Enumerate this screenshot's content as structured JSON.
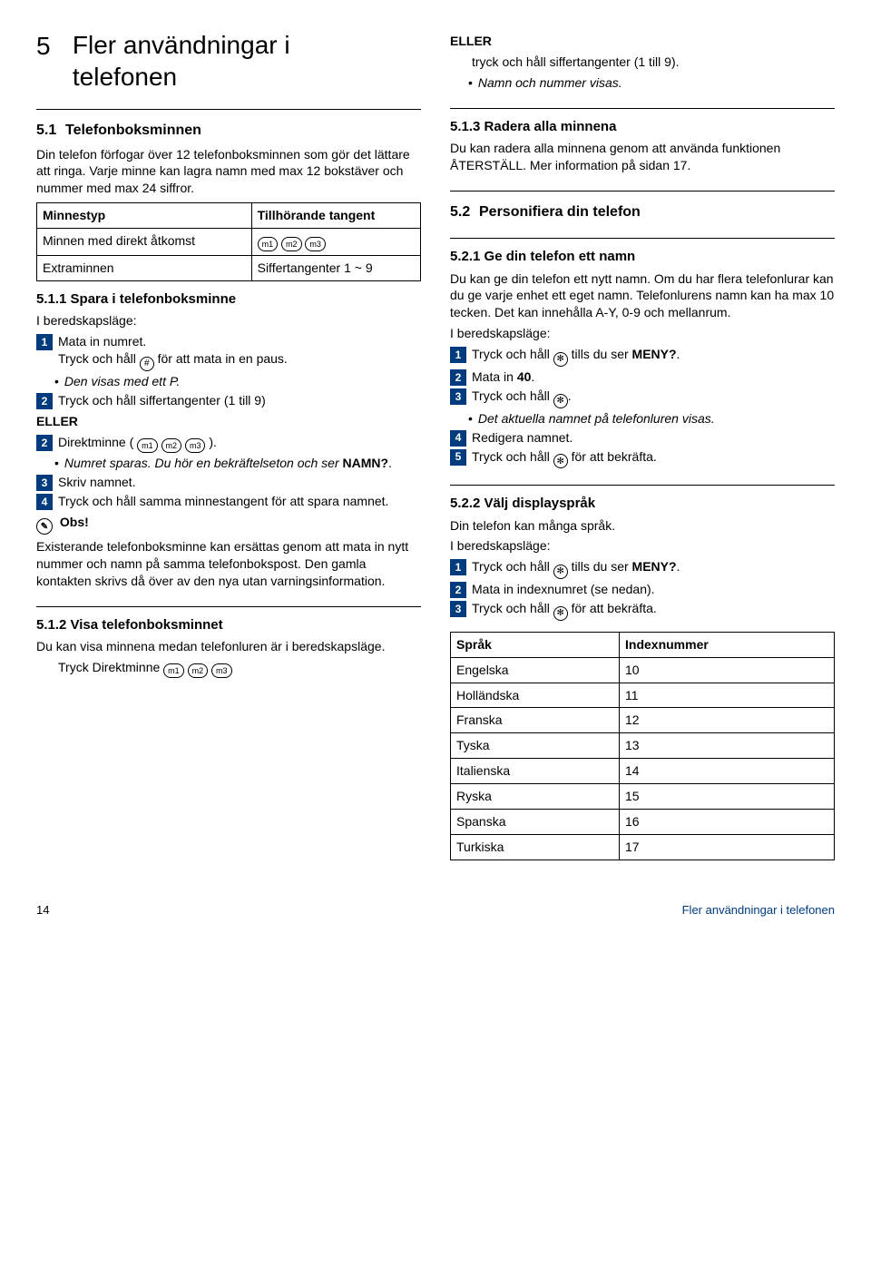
{
  "chapter": {
    "num": "5",
    "title": "Fler användningar i telefonen"
  },
  "sec51": {
    "num": "5.1",
    "title": "Telefonboksminnen",
    "intro": "Din telefon förfogar över 12 telefonboksminnen som gör det lättare att ringa. Varje minne kan lagra namn med max 12 bokstäver och nummer med max 24 siffror.",
    "table": {
      "h1": "Minnestyp",
      "h2": "Tillhörande tangent",
      "r1c1": "Minnen med direkt åtkomst",
      "r2c1": "Extraminnen",
      "r2c2": "Siffertangenter 1 ~ 9"
    }
  },
  "sec511": {
    "title": "5.1.1 Spara i telefonboksminne",
    "lead": "I beredskapsläge:",
    "s1": "Mata in numret.",
    "s1b": "Tryck och håll ",
    "s1b2": " för att mata in en paus.",
    "s1bullet": "Den visas med ett P.",
    "s2a": "Tryck och håll siffertangenter (1 till 9)",
    "eller": "ELLER",
    "s2b_pre": "Direktminne ( ",
    "s2b_post": " ).",
    "s2bullet_a": "Numret sparas. Du hör en bekräftelseton och ser ",
    "s2bullet_b": "NAMN?",
    "s2bullet_c": ".",
    "s3": "Skriv namnet.",
    "s4": "Tryck och håll samma minnestangent för att spara namnet.",
    "obs_label": "Obs!",
    "obs": "Existerande telefonboksminne kan ersättas genom att mata in nytt nummer och namn på samma telefonbokspost. Den gamla kontakten skrivs då över av den nya utan varningsinformation."
  },
  "sec512": {
    "title": "5.1.2 Visa telefonboksminnet",
    "p1": "Du kan visa minnena medan telefonluren är i beredskapsläge.",
    "p2": "Tryck Direktminne "
  },
  "right_top": {
    "eller": "ELLER",
    "line1": "tryck och håll siffertangenter (1 till 9).",
    "bullet": "Namn och nummer visas."
  },
  "sec513": {
    "title": "5.1.3 Radera alla minnena",
    "p": "Du kan radera alla minnena genom att använda funktionen ÅTERSTÄLL. Mer information på sidan 17."
  },
  "sec52": {
    "num": "5.2",
    "title": "Personifiera din telefon"
  },
  "sec521": {
    "title": "5.2.1 Ge din telefon ett namn",
    "p": "Du kan ge din telefon ett nytt namn. Om du har flera telefonlurar kan du ge varje enhet ett eget namn. Telefonlurens namn kan ha max 10 tecken. Det kan innehålla A-Y, 0-9 och mellanrum.",
    "lead": "I beredskapsläge:",
    "s1a": "Tryck och håll ",
    "s1b": " tills du ser ",
    "s1c": "MENY?",
    "s1d": ".",
    "s2a": "Mata in ",
    "s2b": "40",
    "s2c": ".",
    "s3a": "Tryck och håll ",
    "s3b": ".",
    "s3bullet": "Det aktuella namnet på telefonluren visas.",
    "s4": "Redigera namnet.",
    "s5a": "Tryck och håll ",
    "s5b": " för att bekräfta."
  },
  "sec522": {
    "title": "5.2.2 Välj displayspråk",
    "p": "Din telefon kan många språk.",
    "lead": "I beredskapsläge:",
    "s1a": "Tryck och håll ",
    "s1b": " tills du ser ",
    "s1c": "MENY?",
    "s1d": ".",
    "s2": "Mata in indexnumret (se nedan).",
    "s3a": "Tryck och håll ",
    "s3b": " för att bekräfta.",
    "table": {
      "h1": "Språk",
      "h2": "Indexnummer",
      "rows": [
        [
          "Engelska",
          "10"
        ],
        [
          "Holländska",
          "11"
        ],
        [
          "Franska",
          "12"
        ],
        [
          "Tyska",
          "13"
        ],
        [
          "Italienska",
          "14"
        ],
        [
          "Ryska",
          "15"
        ],
        [
          "Spanska",
          "16"
        ],
        [
          "Turkiska",
          "17"
        ]
      ]
    }
  },
  "icons": {
    "m1": "m1",
    "m2": "m2",
    "m3": "m3",
    "hash": "#",
    "star": "✻"
  },
  "footer": {
    "page": "14",
    "title": "Fler användningar i telefonen"
  }
}
